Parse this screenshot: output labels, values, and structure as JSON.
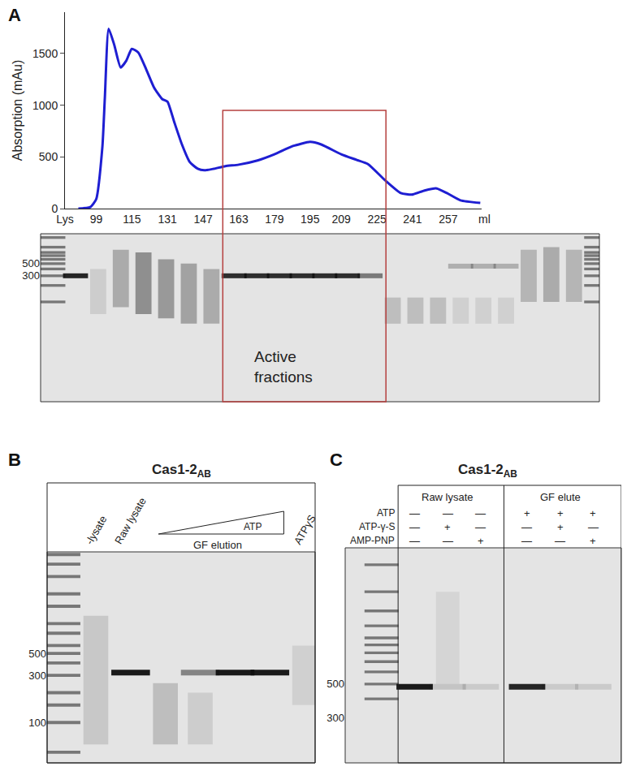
{
  "chart_data": {
    "type": "line",
    "y_label": "Absorption (mAu)",
    "x_label": "ml",
    "x": [
      91,
      96.4,
      99,
      101.8,
      102.9,
      104.6,
      107.1,
      110,
      112.5,
      115,
      117.9,
      121.4,
      125,
      128.6,
      131,
      134,
      137.5,
      141,
      144.6,
      147.5,
      151.8,
      157,
      163,
      171.4,
      179,
      187.3,
      195,
      200,
      209,
      216,
      221,
      228.6,
      235.7,
      240.7,
      246.4,
      251.8,
      256.4,
      262.5,
      271.4
    ],
    "values": [
      0,
      15,
      90,
      600,
      1075,
      1740,
      1585,
      1365,
      1430,
      1545,
      1510,
      1350,
      1170,
      1060,
      1035,
      840,
      620,
      450,
      385,
      370,
      385,
      410,
      425,
      465,
      525,
      605,
      645,
      620,
      525,
      470,
      430,
      275,
      150,
      135,
      175,
      195,
      150,
      80,
      55
    ],
    "color": "#1e1ed2",
    "xlim": [
      85,
      272
    ],
    "ylim": [
      0,
      1900
    ],
    "xticks": [
      {
        "value": 85,
        "label": "Lys"
      },
      99,
      115,
      131,
      147,
      163,
      179,
      195,
      209,
      225,
      241,
      257
    ],
    "yticks": [
      0,
      500,
      1000,
      1500
    ],
    "grid": false
  },
  "panel_labels": [
    "A",
    "B",
    "C"
  ],
  "gels": {
    "A": {
      "ylim": [
        1.5,
        1760
      ],
      "yticks": [
        500,
        300
      ],
      "ladder": [
        1500,
        1000,
        800,
        700,
        600,
        500,
        400,
        300,
        200,
        100
      ],
      "lanes": [
        {
          "ladder": true
        },
        {
          "band": 300,
          "band_intensity": 0.9
        },
        {
          "smear": [
            60,
            400
          ],
          "smear_intensity": 0.12
        },
        {
          "smear": [
            80,
            900
          ],
          "smear_intensity": 0.3
        },
        {
          "smear": [
            60,
            800
          ],
          "smear_intensity": 0.45
        },
        {
          "smear": [
            50,
            600
          ],
          "smear_intensity": 0.4
        },
        {
          "smear": [
            40,
            500
          ],
          "smear_intensity": 0.35
        },
        {
          "smear": [
            40,
            400
          ],
          "smear_intensity": 0.3
        },
        {
          "band": 300,
          "band_intensity": 0.85
        },
        {
          "band": 300,
          "band_intensity": 0.85
        },
        {
          "band": 300,
          "band_intensity": 0.85
        },
        {
          "band": 300,
          "band_intensity": 0.85
        },
        {
          "band": 300,
          "band_intensity": 0.85
        },
        {
          "band": 300,
          "band_intensity": 0.85
        },
        {
          "band": 300,
          "band_intensity": 0.5
        },
        {
          "smear": [
            40,
            120
          ],
          "smear_intensity": 0.2
        },
        {
          "smear": [
            40,
            120
          ],
          "smear_intensity": 0.2
        },
        {
          "smear": [
            40,
            120
          ],
          "smear_intensity": 0.2
        },
        {
          "band": 450,
          "band_intensity": 0.25,
          "smear": [
            40,
            120
          ],
          "smear_intensity": 0.1
        },
        {
          "band": 450,
          "band_intensity": 0.25,
          "smear": [
            40,
            120
          ],
          "smear_intensity": 0.1
        },
        {
          "band": 450,
          "band_intensity": 0.25,
          "smear": [
            40,
            120
          ],
          "smear_intensity": 0.1
        },
        {
          "smear": [
            100,
            900
          ],
          "smear_intensity": 0.25
        },
        {
          "smear": [
            100,
            1000
          ],
          "smear_intensity": 0.3
        },
        {
          "smear": [
            100,
            900
          ],
          "smear_intensity": 0.25
        },
        {
          "ladder": true
        }
      ],
      "active_box": {
        "lanes": [
          7.5,
          14.7
        ],
        "top": 950,
        "color": "#b5403f",
        "label": [
          "Active",
          "fractions"
        ]
      }
    },
    "B": {
      "title": "Cas1-2",
      "title_subscript": "AB",
      "ylim": [
        39,
        5320
      ],
      "yticks": [
        500,
        300,
        100
      ],
      "ladder": [
        5000,
        4000,
        3000,
        2000,
        1500,
        1000,
        800,
        600,
        500,
        400,
        300,
        200,
        150,
        100,
        50
      ],
      "lanes": [
        {
          "ladder": true
        },
        {
          "label": "-lysate",
          "smear": [
            60,
            1200
          ],
          "smear_intensity": 0.15
        },
        {
          "label": "Raw lysate",
          "band": 320,
          "band_intensity": 0.95
        },
        {
          "smear": [
            60,
            250
          ],
          "smear_intensity": 0.2
        },
        {
          "band": 320,
          "band_intensity": 0.45,
          "smear": [
            60,
            200
          ],
          "smear_intensity": 0.12
        },
        {
          "band": 320,
          "band_intensity": 0.95
        },
        {
          "band": 320,
          "band_intensity": 0.95
        },
        {
          "label": "ATPγS",
          "smear": [
            150,
            600
          ],
          "smear_intensity": 0.1
        }
      ],
      "bracket": {
        "label": "GF elution",
        "lanes": [
          3,
          6
        ],
        "wedge_label": "ATP"
      }
    },
    "C": {
      "title": "Cas1-2",
      "title_subscript": "AB",
      "ylim": [
        153,
        3870
      ],
      "yticks": [
        500,
        300
      ],
      "ladder": [
        3000,
        2000,
        1500,
        1200,
        1000,
        900,
        800,
        700,
        600,
        500,
        400
      ],
      "row_labels": [
        "ATP",
        "ATP-γ-S",
        "AMP-PNP"
      ],
      "groups": [
        {
          "label": "Raw lysate",
          "lanes": [
            {
              "conditions": [
                "—",
                "—",
                "—"
              ],
              "band": 480,
              "band_intensity": 0.95
            },
            {
              "conditions": [
                "—",
                "+",
                "—"
              ],
              "band": 480,
              "band_intensity": 0.15,
              "smear": [
                500,
                2000
              ],
              "smear_intensity": 0.08
            },
            {
              "conditions": [
                "—",
                "—",
                "+"
              ],
              "band": 480,
              "band_intensity": 0.12
            }
          ]
        },
        {
          "label": "GF elute",
          "lanes": [
            {
              "conditions": [
                "+",
                "—",
                "—"
              ],
              "band": 480,
              "band_intensity": 0.9
            },
            {
              "conditions": [
                "+",
                "+",
                "—"
              ],
              "band": 480,
              "band_intensity": 0.12
            },
            {
              "conditions": [
                "+",
                "—",
                "+"
              ],
              "band": 480,
              "band_intensity": 0.12
            }
          ]
        }
      ]
    }
  }
}
